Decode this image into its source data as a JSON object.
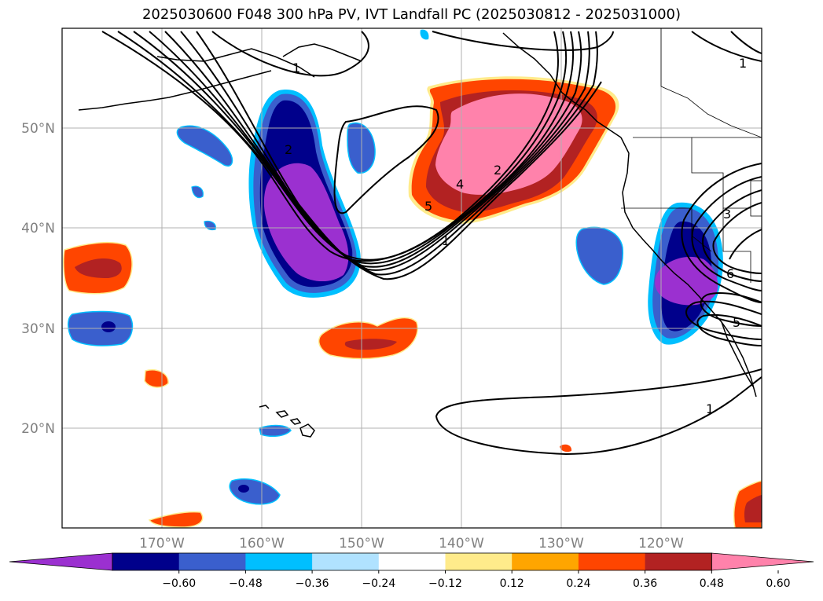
{
  "title": "2025030600 F048 300 hPa PV, IVT Landfall PC (2025030812 - 2025031000)",
  "lat_ticks": [
    "50°N",
    "40°N",
    "30°N",
    "20°N"
  ],
  "lon_ticks": [
    "170°W",
    "160°W",
    "150°W",
    "140°W",
    "130°W",
    "120°W"
  ],
  "colorbar": {
    "ticks": [
      "−0.60",
      "−0.48",
      "−0.36",
      "−0.24",
      "−0.12",
      "0.12",
      "0.24",
      "0.36",
      "0.48",
      "0.60"
    ],
    "colors": [
      "#9b30d0",
      "#00008b",
      "#3a5fcd",
      "#00bfff",
      "#b0e2ff",
      "#ffffff",
      "#ffeb8b",
      "#ffa500",
      "#ff4500",
      "#b22222",
      "#ff82ab"
    ]
  },
  "contour_labels": [
    "1",
    "2",
    "1",
    "5",
    "4",
    "2",
    "1",
    "3",
    "6",
    "5",
    "1"
  ]
}
